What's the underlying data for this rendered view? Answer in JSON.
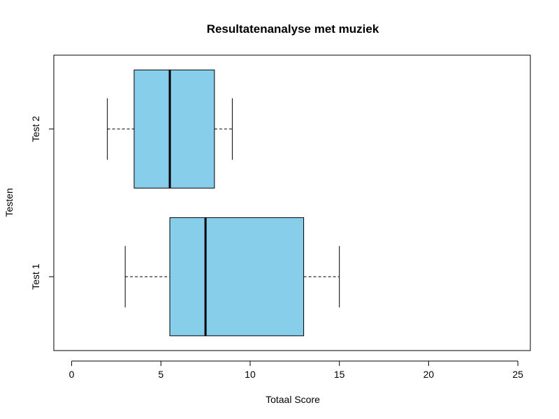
{
  "chart_data": {
    "type": "boxplot",
    "orientation": "horizontal",
    "title": "Resultatenanalyse met muziek",
    "xlabel": "Totaal Score",
    "ylabel": "Testen",
    "xlim": [
      -1,
      25.7
    ],
    "x_ticks": [
      0,
      5,
      10,
      15,
      20,
      25
    ],
    "categories": [
      "Test 1",
      "Test 2"
    ],
    "series": [
      {
        "category": "Test 1",
        "min": 3,
        "q1": 5.5,
        "median": 7.5,
        "q3": 13,
        "max": 15
      },
      {
        "category": "Test 2",
        "min": 2,
        "q1": 3.5,
        "median": 5.5,
        "q3": 8,
        "max": 9
      }
    ],
    "box_color": "#87CEEB",
    "grid": false,
    "legend": "none"
  }
}
